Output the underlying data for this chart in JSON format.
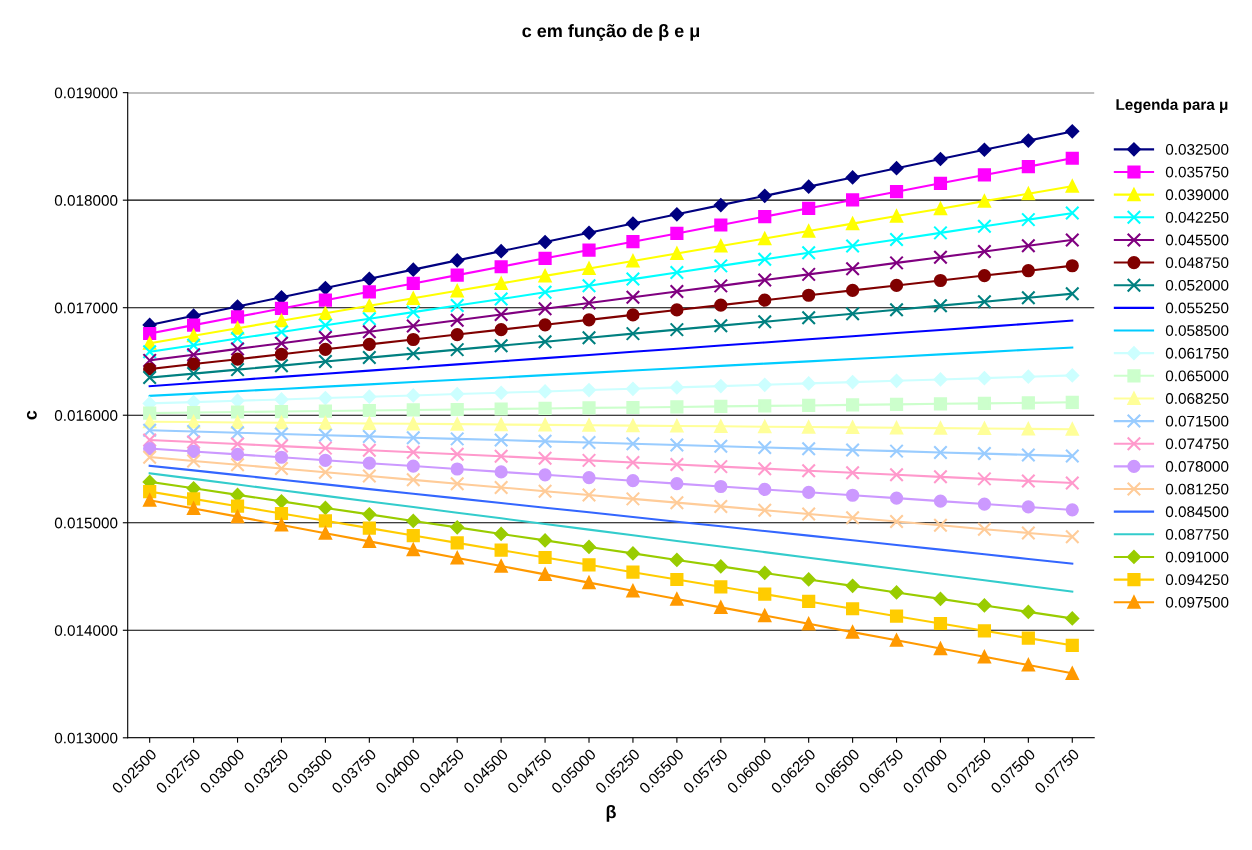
{
  "chart_data": {
    "type": "line",
    "title": "c em função de β e μ",
    "xlabel": "β",
    "ylabel": "c",
    "legend_title": "Legenda para μ",
    "categories": [
      "0.02500",
      "0.02750",
      "0.03000",
      "0.03250",
      "0.03500",
      "0.03750",
      "0.04000",
      "0.04250",
      "0.04500",
      "0.04750",
      "0.05000",
      "0.05250",
      "0.05500",
      "0.05750",
      "0.06000",
      "0.06250",
      "0.06500",
      "0.06750",
      "0.07000",
      "0.07250",
      "0.07500",
      "0.07750"
    ],
    "ylim": [
      0.013,
      0.019
    ],
    "yticks": [
      {
        "value": 0.013,
        "label": "0.013000"
      },
      {
        "value": 0.014,
        "label": "0.014000"
      },
      {
        "value": 0.015,
        "label": "0.015000"
      },
      {
        "value": 0.016,
        "label": "0.016000"
      },
      {
        "value": 0.017,
        "label": "0.017000"
      },
      {
        "value": 0.018,
        "label": "0.018000"
      },
      {
        "value": 0.019,
        "label": "0.019000"
      }
    ],
    "grid": "y",
    "legend": "right",
    "line_style": "solid",
    "series": [
      {
        "name": "0.032500",
        "color": "#000080",
        "marker": "diamond",
        "values": [
          0.01684,
          0.016926,
          0.017011,
          0.017097,
          0.017183,
          0.017269,
          0.017354,
          0.01744,
          0.017526,
          0.017611,
          0.017697,
          0.017783,
          0.017869,
          0.017954,
          0.01804,
          0.018126,
          0.018211,
          0.018297,
          0.018383,
          0.018469,
          0.018554,
          0.01864
        ]
      },
      {
        "name": "0.035750",
        "color": "#ff00ff",
        "marker": "square",
        "values": [
          0.01676,
          0.016838,
          0.016915,
          0.016993,
          0.01707,
          0.017148,
          0.017226,
          0.017303,
          0.017381,
          0.017459,
          0.017536,
          0.017614,
          0.017691,
          0.017769,
          0.017847,
          0.017924,
          0.018002,
          0.018079,
          0.018157,
          0.018235,
          0.018312,
          0.01839
        ]
      },
      {
        "name": "0.039000",
        "color": "#ffff00",
        "marker": "triangle",
        "values": [
          0.01667,
          0.01674,
          0.016809,
          0.016879,
          0.016948,
          0.017018,
          0.017087,
          0.017157,
          0.017226,
          0.017296,
          0.017365,
          0.017435,
          0.017504,
          0.017574,
          0.017643,
          0.017713,
          0.017782,
          0.017852,
          0.017921,
          0.017991,
          0.01806,
          0.01813
        ]
      },
      {
        "name": "0.042250",
        "color": "#00ffff",
        "marker": "cross",
        "values": [
          0.01659,
          0.016651,
          0.016713,
          0.016774,
          0.016836,
          0.016897,
          0.016959,
          0.01702,
          0.017081,
          0.017143,
          0.017204,
          0.017266,
          0.017327,
          0.017389,
          0.01745,
          0.017511,
          0.017573,
          0.017634,
          0.017696,
          0.017757,
          0.017819,
          0.01788
        ]
      },
      {
        "name": "0.045500",
        "color": "#800080",
        "marker": "cross",
        "values": [
          0.01651,
          0.016563,
          0.016617,
          0.01667,
          0.016723,
          0.016777,
          0.01683,
          0.016883,
          0.016937,
          0.01699,
          0.017043,
          0.017097,
          0.01715,
          0.017203,
          0.017257,
          0.01731,
          0.017363,
          0.017417,
          0.01747,
          0.017523,
          0.017577,
          0.01763
        ]
      },
      {
        "name": "0.048750",
        "color": "#800000",
        "marker": "circle",
        "values": [
          0.01643,
          0.016476,
          0.016521,
          0.016567,
          0.016613,
          0.016659,
          0.016704,
          0.01675,
          0.016796,
          0.016841,
          0.016887,
          0.016933,
          0.016979,
          0.017024,
          0.01707,
          0.017116,
          0.017161,
          0.017207,
          0.017253,
          0.017299,
          0.017344,
          0.01739
        ]
      },
      {
        "name": "0.052000",
        "color": "#008080",
        "marker": "cross",
        "values": [
          0.01635,
          0.016387,
          0.016424,
          0.016461,
          0.016499,
          0.016536,
          0.016573,
          0.01661,
          0.016647,
          0.016684,
          0.016721,
          0.016759,
          0.016796,
          0.016833,
          0.01687,
          0.016907,
          0.016944,
          0.016981,
          0.017019,
          0.017056,
          0.017093,
          0.01713
        ]
      },
      {
        "name": "0.055250",
        "color": "#0000ff",
        "marker": "none",
        "values": [
          0.01627,
          0.016299,
          0.016328,
          0.016357,
          0.016386,
          0.016415,
          0.016444,
          0.016473,
          0.016502,
          0.016531,
          0.01656,
          0.01659,
          0.016619,
          0.016648,
          0.016677,
          0.016706,
          0.016735,
          0.016764,
          0.016793,
          0.016822,
          0.016851,
          0.01688
        ]
      },
      {
        "name": "0.058500",
        "color": "#00ccff",
        "marker": "none",
        "values": [
          0.01618,
          0.016201,
          0.016223,
          0.016244,
          0.016266,
          0.016287,
          0.016309,
          0.01633,
          0.016351,
          0.016373,
          0.016394,
          0.016416,
          0.016437,
          0.016459,
          0.01648,
          0.016501,
          0.016523,
          0.016544,
          0.016566,
          0.016587,
          0.016609,
          0.01663
        ]
      },
      {
        "name": "0.061750",
        "color": "#ccffff",
        "marker": "diamond",
        "values": [
          0.01611,
          0.016122,
          0.016135,
          0.016147,
          0.01616,
          0.016172,
          0.016184,
          0.016197,
          0.016209,
          0.016221,
          0.016234,
          0.016246,
          0.016259,
          0.016271,
          0.016283,
          0.016296,
          0.016308,
          0.01632,
          0.016333,
          0.016345,
          0.016358,
          0.01637
        ]
      },
      {
        "name": "0.065000",
        "color": "#ccffcc",
        "marker": "square",
        "values": [
          0.01602,
          0.016025,
          0.01603,
          0.016034,
          0.016039,
          0.016044,
          0.016049,
          0.016053,
          0.016058,
          0.016063,
          0.016068,
          0.016072,
          0.016077,
          0.016082,
          0.016087,
          0.016091,
          0.016096,
          0.016101,
          0.016106,
          0.01611,
          0.016115,
          0.01612
        ]
      },
      {
        "name": "0.068250",
        "color": "#ffff99",
        "marker": "triangle",
        "values": [
          0.01594,
          0.015937,
          0.015933,
          0.01593,
          0.015927,
          0.015923,
          0.01592,
          0.015917,
          0.015913,
          0.01591,
          0.015907,
          0.015903,
          0.0159,
          0.015897,
          0.015893,
          0.01589,
          0.015887,
          0.015883,
          0.01588,
          0.015877,
          0.015873,
          0.01587
        ]
      },
      {
        "name": "0.071500",
        "color": "#99ccff",
        "marker": "cross",
        "values": [
          0.01586,
          0.015849,
          0.015837,
          0.015826,
          0.015814,
          0.015803,
          0.015791,
          0.01578,
          0.015769,
          0.015757,
          0.015746,
          0.015734,
          0.015723,
          0.015711,
          0.0157,
          0.015689,
          0.015677,
          0.015666,
          0.015654,
          0.015643,
          0.015631,
          0.01562
        ]
      },
      {
        "name": "0.074750",
        "color": "#ff99cc",
        "marker": "cross",
        "values": [
          0.01577,
          0.015751,
          0.015732,
          0.015713,
          0.015694,
          0.015675,
          0.015656,
          0.015637,
          0.015618,
          0.015599,
          0.01558,
          0.01556,
          0.015541,
          0.015522,
          0.015503,
          0.015484,
          0.015465,
          0.015446,
          0.015427,
          0.015408,
          0.015389,
          0.01537
        ]
      },
      {
        "name": "0.078000",
        "color": "#cc99ff",
        "marker": "circle",
        "values": [
          0.01569,
          0.015663,
          0.015636,
          0.015609,
          0.015581,
          0.015554,
          0.015527,
          0.0155,
          0.015473,
          0.015446,
          0.015419,
          0.015391,
          0.015364,
          0.015337,
          0.01531,
          0.015283,
          0.015256,
          0.015229,
          0.015201,
          0.015174,
          0.015147,
          0.01512
        ]
      },
      {
        "name": "0.081250",
        "color": "#ffcc99",
        "marker": "cross",
        "values": [
          0.01561,
          0.015575,
          0.01554,
          0.015504,
          0.015469,
          0.015434,
          0.015399,
          0.015363,
          0.015328,
          0.015293,
          0.015258,
          0.015222,
          0.015187,
          0.015152,
          0.015117,
          0.015081,
          0.015046,
          0.015011,
          0.014976,
          0.01494,
          0.014905,
          0.01487
        ]
      },
      {
        "name": "0.084500",
        "color": "#3366ff",
        "marker": "none",
        "values": [
          0.01553,
          0.015487,
          0.015443,
          0.0154,
          0.015357,
          0.015313,
          0.01527,
          0.015227,
          0.015183,
          0.01514,
          0.015097,
          0.015053,
          0.01501,
          0.014967,
          0.014923,
          0.01488,
          0.014837,
          0.014793,
          0.01475,
          0.014707,
          0.014663,
          0.01462
        ]
      },
      {
        "name": "0.087750",
        "color": "#33cccc",
        "marker": "none",
        "values": [
          0.01546,
          0.015408,
          0.015355,
          0.015303,
          0.01525,
          0.015198,
          0.015146,
          0.015093,
          0.015041,
          0.014989,
          0.014936,
          0.014884,
          0.014831,
          0.014779,
          0.014727,
          0.014674,
          0.014622,
          0.01457,
          0.014517,
          0.014465,
          0.014412,
          0.01436
        ]
      },
      {
        "name": "0.091000",
        "color": "#99cc00",
        "marker": "diamond",
        "values": [
          0.01538,
          0.01532,
          0.015259,
          0.015199,
          0.015138,
          0.015078,
          0.015017,
          0.014957,
          0.014896,
          0.014836,
          0.014775,
          0.014715,
          0.014654,
          0.014594,
          0.014533,
          0.014473,
          0.014413,
          0.014352,
          0.014292,
          0.014231,
          0.014171,
          0.01411
        ]
      },
      {
        "name": "0.094250",
        "color": "#ffcc00",
        "marker": "square",
        "values": [
          0.01529,
          0.015222,
          0.015154,
          0.015086,
          0.015018,
          0.01495,
          0.014881,
          0.014813,
          0.014745,
          0.014677,
          0.014609,
          0.01454,
          0.014472,
          0.014404,
          0.014336,
          0.014268,
          0.0142,
          0.014131,
          0.014063,
          0.013995,
          0.013927,
          0.01386
        ]
      },
      {
        "name": "0.097500",
        "color": "#ff9900",
        "marker": "triangle",
        "values": [
          0.01521,
          0.015133,
          0.015057,
          0.01498,
          0.014903,
          0.014827,
          0.01475,
          0.014673,
          0.014597,
          0.01452,
          0.014443,
          0.014367,
          0.01429,
          0.014213,
          0.014137,
          0.01406,
          0.013983,
          0.013907,
          0.01383,
          0.013753,
          0.013677,
          0.0136
        ]
      }
    ]
  }
}
